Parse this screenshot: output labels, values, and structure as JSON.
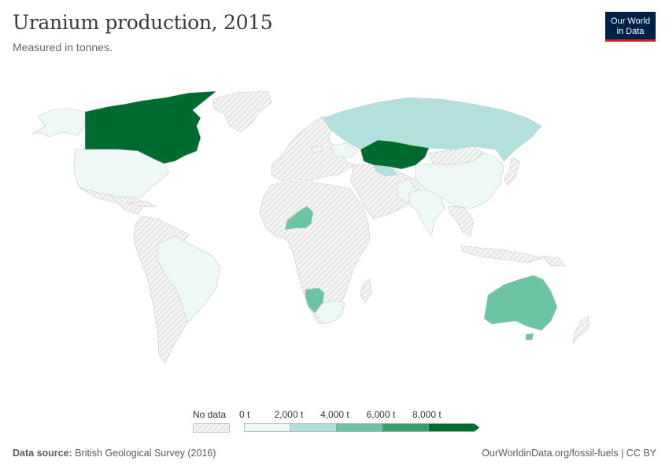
{
  "title": "Uranium production, 2015",
  "subtitle": "Measured in tonnes.",
  "logo": {
    "line1": "Our World",
    "line2": "in Data"
  },
  "legend": {
    "no_data_label": "No data",
    "bins": [
      {
        "label": "0 t",
        "color": "#eef8f7"
      },
      {
        "label": "2,000 t",
        "color": "#b2e0dd"
      },
      {
        "label": "4,000 t",
        "color": "#6bc5a3"
      },
      {
        "label": "6,000 t",
        "color": "#3aa06b"
      },
      {
        "label": "8,000 t",
        "color": "#006b2e"
      }
    ]
  },
  "colors": {
    "no_data_fill": "#f4f4f4",
    "no_data_hatch": "#d0d0d0",
    "border": "#c8c8c8"
  },
  "map": {
    "regions": [
      {
        "name": "Canada",
        "value_bin": 4
      },
      {
        "name": "Kazakhstan",
        "value_bin": 4
      },
      {
        "name": "Australia",
        "value_bin": 2
      },
      {
        "name": "Niger",
        "value_bin": 2
      },
      {
        "name": "Namibia",
        "value_bin": 2
      },
      {
        "name": "Russia",
        "value_bin": 1
      },
      {
        "name": "Uzbekistan",
        "value_bin": 1
      },
      {
        "name": "United States",
        "value_bin": 0
      },
      {
        "name": "Brazil",
        "value_bin": 0
      },
      {
        "name": "China",
        "value_bin": 0
      },
      {
        "name": "India",
        "value_bin": 0
      },
      {
        "name": "South Africa",
        "value_bin": 0
      },
      {
        "name": "Ukraine",
        "value_bin": 0
      },
      {
        "name": "Pakistan",
        "value_bin": 0
      },
      {
        "name": "Greenland",
        "value_bin": null
      }
    ]
  },
  "footer": {
    "source_label": "Data source:",
    "source_text": "British Geological Survey (2016)",
    "right_text": "OurWorldinData.org/fossil-fuels | CC BY"
  }
}
